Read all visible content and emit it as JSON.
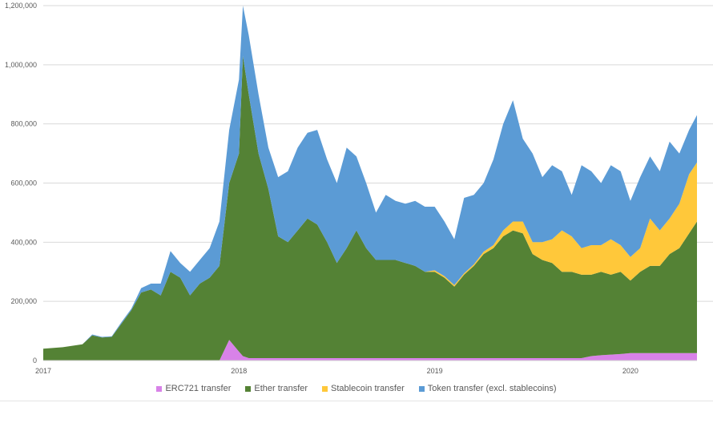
{
  "chart_data": {
    "type": "area",
    "stacked": true,
    "title": "",
    "xlabel": "",
    "ylabel": "",
    "xlim": [
      2017.0,
      2020.34
    ],
    "ylim": [
      0,
      1200000
    ],
    "grid": true,
    "legend_position": "bottom",
    "x_ticks": [
      {
        "value": 2017,
        "label": "2017"
      },
      {
        "value": 2018,
        "label": "2018"
      },
      {
        "value": 2019,
        "label": "2019"
      },
      {
        "value": 2020,
        "label": "2020"
      }
    ],
    "y_ticks": [
      {
        "value": 0,
        "label": "0"
      },
      {
        "value": 200000,
        "label": "200,000"
      },
      {
        "value": 400000,
        "label": "400,000"
      },
      {
        "value": 600000,
        "label": "600,000"
      },
      {
        "value": 800000,
        "label": "800,000"
      },
      {
        "value": 1000000,
        "label": "1,000,000"
      },
      {
        "value": 1200000,
        "label": "1,200,000"
      }
    ],
    "x": [
      2017.0,
      2017.1,
      2017.2,
      2017.25,
      2017.3,
      2017.35,
      2017.4,
      2017.45,
      2017.5,
      2017.55,
      2017.6,
      2017.65,
      2017.7,
      2017.75,
      2017.8,
      2017.85,
      2017.9,
      2017.95,
      2018.0,
      2018.02,
      2018.05,
      2018.1,
      2018.15,
      2018.2,
      2018.25,
      2018.3,
      2018.35,
      2018.4,
      2018.45,
      2018.5,
      2018.55,
      2018.6,
      2018.65,
      2018.7,
      2018.75,
      2018.8,
      2018.85,
      2018.9,
      2018.95,
      2019.0,
      2019.05,
      2019.1,
      2019.15,
      2019.2,
      2019.25,
      2019.3,
      2019.35,
      2019.4,
      2019.45,
      2019.5,
      2019.55,
      2019.6,
      2019.65,
      2019.7,
      2019.75,
      2019.8,
      2019.85,
      2019.9,
      2019.95,
      2020.0,
      2020.05,
      2020.1,
      2020.15,
      2020.2,
      2020.25,
      2020.3,
      2020.34
    ],
    "series": [
      {
        "name": "ERC721 transfer",
        "color": "#d882e8",
        "values": [
          0,
          0,
          0,
          0,
          0,
          0,
          0,
          0,
          0,
          0,
          0,
          0,
          0,
          0,
          0,
          0,
          0,
          70000,
          30000,
          15000,
          8000,
          8000,
          8000,
          8000,
          8000,
          8000,
          8000,
          8000,
          8000,
          8000,
          8000,
          8000,
          8000,
          8000,
          8000,
          8000,
          8000,
          8000,
          8000,
          8000,
          8000,
          8000,
          8000,
          8000,
          8000,
          8000,
          8000,
          8000,
          8000,
          8000,
          8000,
          8000,
          8000,
          8000,
          8000,
          15000,
          18000,
          20000,
          22000,
          25000,
          25000,
          25000,
          25000,
          25000,
          25000,
          25000,
          25000
        ]
      },
      {
        "name": "Ether transfer",
        "color": "#548235",
        "values": [
          40000,
          45000,
          55000,
          85000,
          78000,
          80000,
          125000,
          170000,
          230000,
          240000,
          220000,
          300000,
          280000,
          220000,
          260000,
          280000,
          320000,
          530000,
          670000,
          1015000,
          892000,
          692000,
          572000,
          412000,
          392000,
          432000,
          472000,
          452000,
          392000,
          322000,
          372000,
          432000,
          372000,
          332000,
          332000,
          332000,
          322000,
          312000,
          292000,
          292000,
          272000,
          242000,
          282000,
          312000,
          352000,
          372000,
          412000,
          432000,
          422000,
          352000,
          332000,
          322000,
          292000,
          292000,
          282000,
          275000,
          282000,
          270000,
          278000,
          245000,
          275000,
          295000,
          295000,
          335000,
          355000,
          405000,
          445000
        ]
      },
      {
        "name": "Stablecoin transfer",
        "color": "#ffc83a",
        "values": [
          0,
          0,
          0,
          0,
          0,
          0,
          0,
          0,
          0,
          0,
          0,
          0,
          0,
          0,
          0,
          0,
          0,
          0,
          0,
          0,
          0,
          0,
          0,
          0,
          0,
          0,
          0,
          0,
          0,
          0,
          0,
          0,
          0,
          0,
          0,
          0,
          0,
          0,
          0,
          5000,
          5000,
          5000,
          5000,
          5000,
          8000,
          10000,
          20000,
          30000,
          40000,
          40000,
          60000,
          80000,
          140000,
          120000,
          90000,
          100000,
          90000,
          120000,
          90000,
          80000,
          80000,
          160000,
          120000,
          120000,
          150000,
          200000,
          200000
        ]
      },
      {
        "name": "Token transfer (excl. stablecoins)",
        "color": "#5b9bd5",
        "values": [
          0,
          0,
          0,
          3000,
          2000,
          2000,
          5000,
          5000,
          15000,
          20000,
          40000,
          70000,
          50000,
          80000,
          80000,
          100000,
          150000,
          180000,
          250000,
          170000,
          200000,
          200000,
          140000,
          200000,
          240000,
          280000,
          290000,
          320000,
          280000,
          270000,
          340000,
          250000,
          220000,
          160000,
          220000,
          200000,
          200000,
          220000,
          220000,
          215000,
          185000,
          155000,
          255000,
          235000,
          232000,
          290000,
          360000,
          410000,
          280000,
          300000,
          220000,
          250000,
          200000,
          140000,
          280000,
          250000,
          210000,
          250000,
          250000,
          190000,
          240000,
          210000,
          200000,
          260000,
          170000,
          150000,
          160000
        ]
      }
    ]
  }
}
